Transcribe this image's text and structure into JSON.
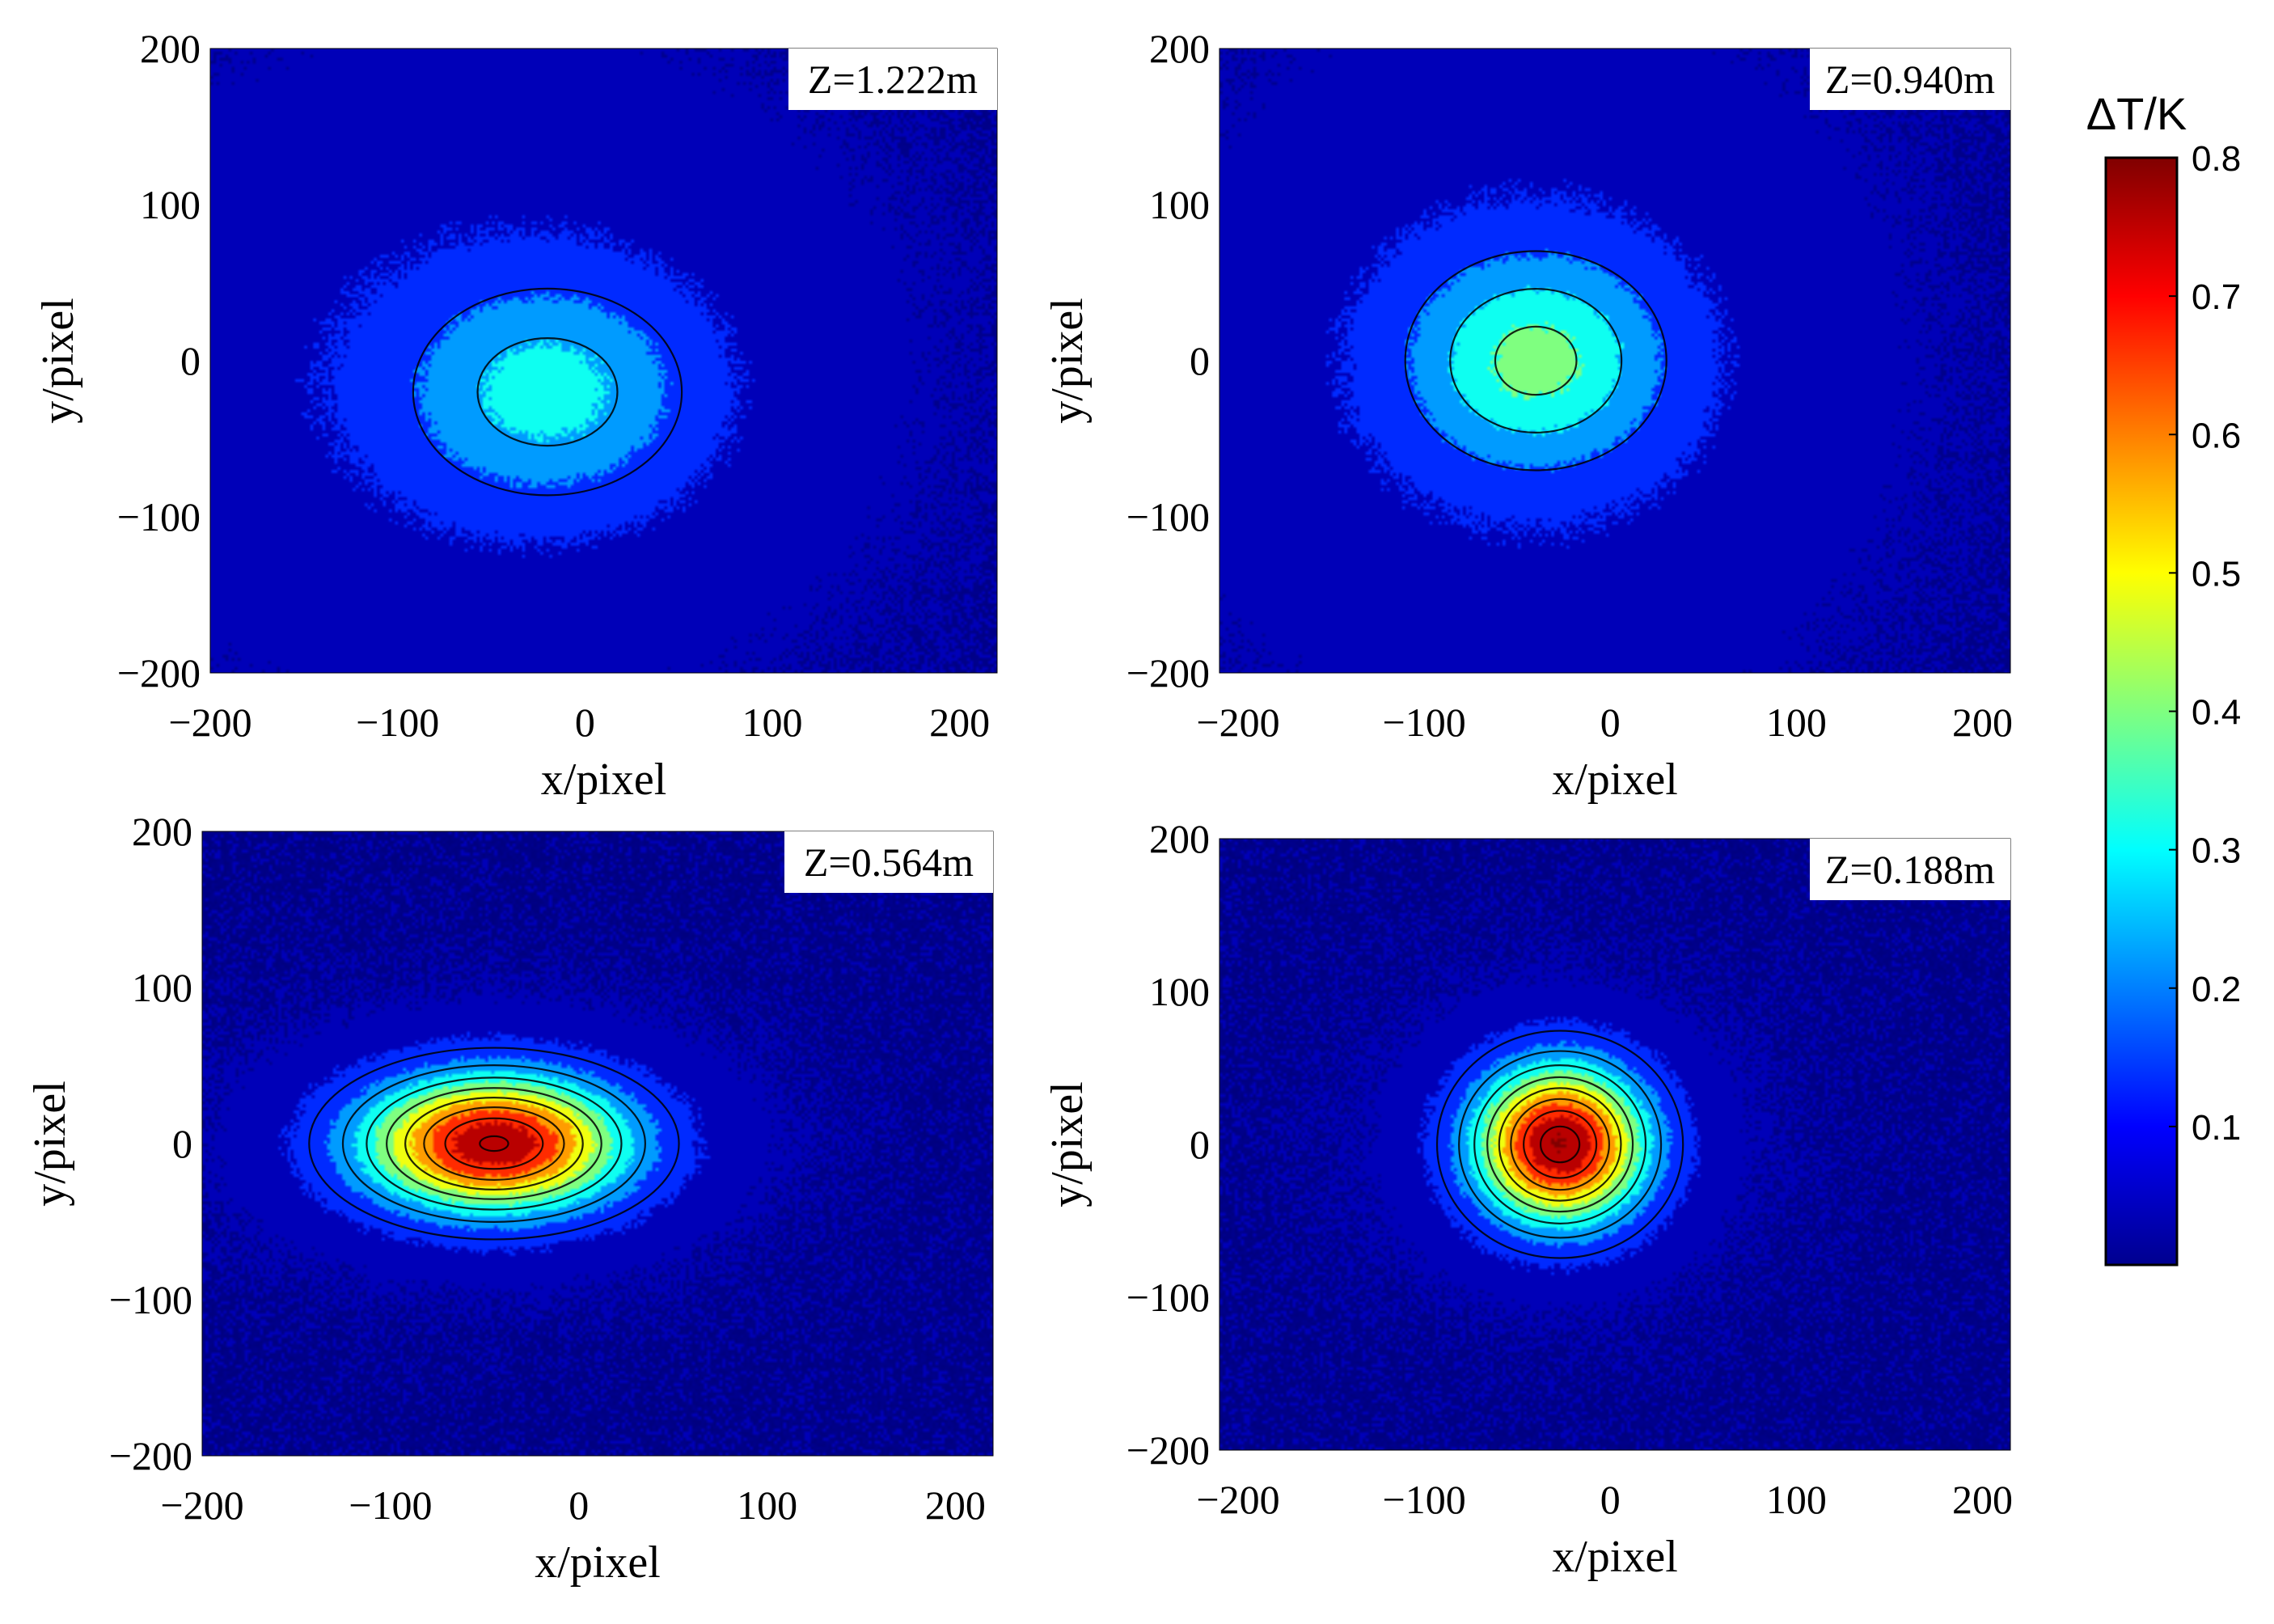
{
  "colorbar": {
    "label": "ΔT/K",
    "ticks": [
      "0.1",
      "0.2",
      "0.3",
      "0.4",
      "0.5",
      "0.6",
      "0.7",
      "0.8"
    ],
    "range": [
      0.0,
      0.8
    ],
    "colormap": "jet"
  },
  "chart_data": [
    {
      "type": "heatmap",
      "annotation": "Z=1.222m",
      "xlabel": "x/pixel",
      "ylabel": "y/pixel",
      "xlim": [
        -200,
        220
      ],
      "ylim": [
        -200,
        200
      ],
      "xticks": [
        "−200",
        "−100",
        "0",
        "100",
        "200"
      ],
      "yticks": [
        "200",
        "100",
        "0",
        "−100",
        "−200"
      ],
      "components": [
        {
          "cx": -20,
          "cy": -20,
          "sx": 52,
          "sy": 48,
          "amp": 0.23
        },
        {
          "cx": -60,
          "cy": -5,
          "sx": 145,
          "sy": 135,
          "amp": 0.07
        }
      ],
      "noise": 0.025
    },
    {
      "type": "heatmap",
      "annotation": "Z=0.940m",
      "xlabel": "x/pixel",
      "ylabel": "y/pixel",
      "xlim": [
        -210,
        215
      ],
      "ylim": [
        -200,
        200
      ],
      "xticks": [
        "−200",
        "−100",
        "0",
        "100",
        "200"
      ],
      "yticks": [
        "200",
        "100",
        "0",
        "−100",
        "−200"
      ],
      "components": [
        {
          "cx": -40,
          "cy": 0,
          "sx": 45,
          "sy": 45,
          "amp": 0.3
        },
        {
          "cx": -45,
          "cy": -5,
          "sx": 120,
          "sy": 140,
          "amp": 0.08
        }
      ],
      "noise": 0.025
    },
    {
      "type": "heatmap",
      "annotation": "Z=0.564m",
      "xlabel": "x/pixel",
      "ylabel": "y/pixel",
      "xlim": [
        -200,
        220
      ],
      "ylim": [
        -200,
        200
      ],
      "xticks": [
        "−200",
        "−100",
        "0",
        "100",
        "200"
      ],
      "yticks": [
        "200",
        "100",
        "0",
        "−100",
        "−200"
      ],
      "components": [
        {
          "cx": -45,
          "cy": 0,
          "sx": 48,
          "sy": 30,
          "amp": 0.72
        },
        {
          "cx": -45,
          "cy": 0,
          "sx": 90,
          "sy": 55,
          "amp": 0.05
        }
      ],
      "noise": 0.03
    },
    {
      "type": "heatmap",
      "annotation": "Z=0.188m",
      "xlabel": "x/pixel",
      "ylabel": "y/pixel",
      "xlim": [
        -210,
        215
      ],
      "ylim": [
        -200,
        200
      ],
      "xticks": [
        "−200",
        "−100",
        "0",
        "100",
        "200"
      ],
      "yticks": [
        "200",
        "100",
        "0",
        "−100",
        "−200"
      ],
      "components": [
        {
          "cx": -27,
          "cy": 0,
          "sx": 32,
          "sy": 36,
          "amp": 0.75
        },
        {
          "cx": -27,
          "cy": 0,
          "sx": 70,
          "sy": 65,
          "amp": 0.04
        }
      ],
      "noise": 0.03
    }
  ]
}
